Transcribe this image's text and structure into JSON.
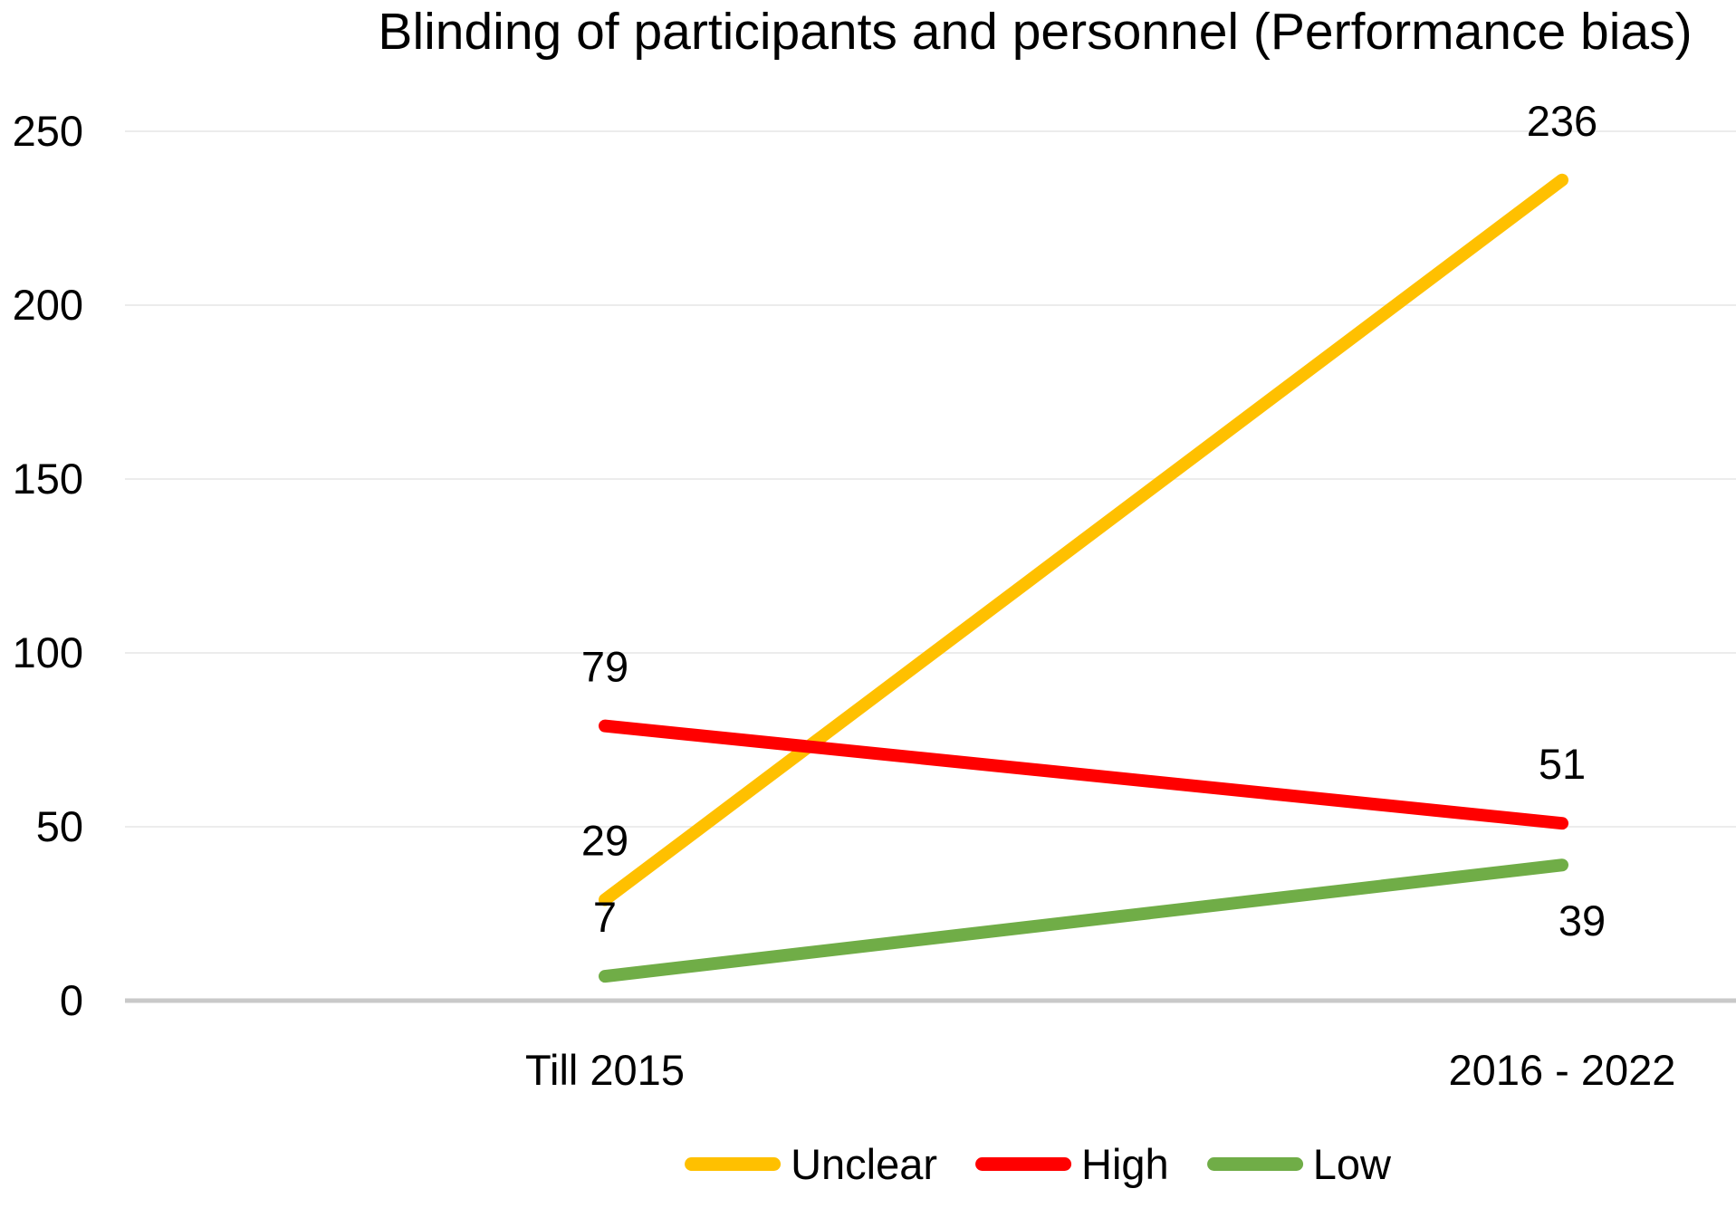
{
  "chart_data": {
    "type": "line",
    "title": "Blinding of participants and personnel (Performance bias)",
    "categories": [
      "Till 2015",
      "2016 - 2022"
    ],
    "series": [
      {
        "name": "Unclear",
        "color": "#FFC000",
        "values": [
          29,
          236
        ],
        "label_placement": [
          "above",
          "above"
        ]
      },
      {
        "name": "High",
        "color": "#FF0000",
        "values": [
          79,
          51
        ],
        "label_placement": [
          "above",
          "above"
        ]
      },
      {
        "name": "Low",
        "color": "#70AD47",
        "values": [
          7,
          39
        ],
        "label_placement": [
          "above",
          "below"
        ]
      }
    ],
    "yticks": [
      0,
      50,
      100,
      150,
      200,
      250
    ],
    "ylim": [
      0,
      250
    ],
    "grid": true,
    "legend_position": "bottom",
    "gridline_color": "#ECECEC",
    "axis_line_color": "#C9C9C9",
    "text_color": "#000000"
  }
}
